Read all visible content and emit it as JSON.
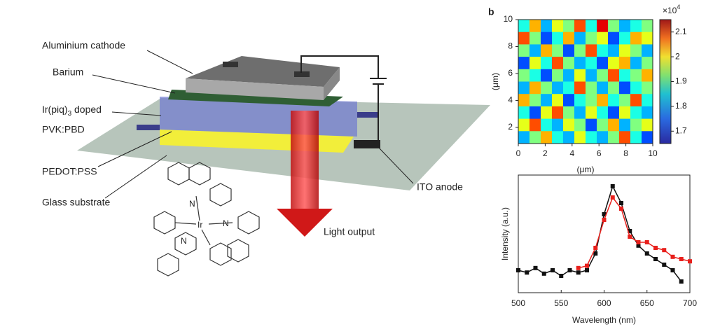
{
  "diagram": {
    "labels": {
      "cathode": "Aluminium cathode",
      "barium": "Barium",
      "doped": {
        "text": "Ir(piq)",
        "sub": "3",
        "rest": " doped"
      },
      "host": "PVK:PBD",
      "pedot": "PEDOT:PSS",
      "glass": "Glass substrate",
      "ito": "ITO anode",
      "light": "Light output"
    },
    "molecule_atoms": [
      "N",
      "N",
      "N",
      "Ir"
    ]
  },
  "panel_label": "b",
  "chart_data": [
    {
      "type": "heatmap",
      "xlabel": "(μm)",
      "ylabel": "(μm)",
      "xlim": [
        0,
        10
      ],
      "ylim": [
        0.8,
        10
      ],
      "xticks": [
        0,
        2,
        4,
        6,
        8,
        10
      ],
      "yticks": [
        2,
        4,
        6,
        8,
        10
      ],
      "colorbar": {
        "clim": [
          1.65,
          2.15
        ],
        "ticks": [
          1.7,
          1.8,
          1.9,
          2,
          2.1
        ],
        "multiplier": {
          "base": "×10",
          "sup": "4"
        }
      },
      "grid_values": [
        [
          1.85,
          2.0,
          1.8,
          1.95,
          1.9,
          2.05,
          1.85,
          2.1,
          1.9,
          1.8,
          1.85,
          1.9
        ],
        [
          2.05,
          1.9,
          1.75,
          1.85,
          2.0,
          1.8,
          1.9,
          1.95,
          1.75,
          1.85,
          2.0,
          1.95
        ],
        [
          1.9,
          1.8,
          2.0,
          1.9,
          1.75,
          1.9,
          2.05,
          1.85,
          1.8,
          1.95,
          1.9,
          1.8
        ],
        [
          1.75,
          1.95,
          1.85,
          2.05,
          1.9,
          1.8,
          1.85,
          1.75,
          1.95,
          2.0,
          1.8,
          1.9
        ],
        [
          1.9,
          1.85,
          1.75,
          1.9,
          1.8,
          1.95,
          1.8,
          1.9,
          2.05,
          1.85,
          1.9,
          2.0
        ],
        [
          1.8,
          2.0,
          1.9,
          1.8,
          1.85,
          2.05,
          1.9,
          1.8,
          1.9,
          1.75,
          1.85,
          1.9
        ],
        [
          2.0,
          1.9,
          1.8,
          1.95,
          1.75,
          1.85,
          1.9,
          2.0,
          1.85,
          1.9,
          2.05,
          1.85
        ],
        [
          1.85,
          1.75,
          1.95,
          2.05,
          1.9,
          1.8,
          1.95,
          1.85,
          1.75,
          1.95,
          1.85,
          1.8
        ],
        [
          1.95,
          2.05,
          1.85,
          1.8,
          1.95,
          1.9,
          1.75,
          1.9,
          2.0,
          1.8,
          1.9,
          1.95
        ],
        [
          1.8,
          1.9,
          2.0,
          1.85,
          1.8,
          1.95,
          1.85,
          1.8,
          1.9,
          2.05,
          1.85,
          1.75
        ]
      ]
    },
    {
      "type": "line",
      "xlabel": "Wavelength (nm)",
      "ylabel": "Intensity (a.u.)",
      "xlim": [
        500,
        700
      ],
      "ylim": [
        0,
        1.05
      ],
      "xticks": [
        500,
        550,
        600,
        650,
        700
      ],
      "x": [
        500,
        510,
        520,
        530,
        540,
        550,
        560,
        570,
        580,
        590,
        600,
        610,
        620,
        630,
        640,
        650,
        660,
        670,
        680,
        690,
        700
      ],
      "series": [
        {
          "color": "#111111",
          "values": [
            0.2,
            0.18,
            0.22,
            0.17,
            0.2,
            0.15,
            0.2,
            0.18,
            0.2,
            0.35,
            0.7,
            0.95,
            0.8,
            0.55,
            0.42,
            0.35,
            0.3,
            0.25,
            0.2,
            0.1,
            null
          ]
        },
        {
          "color": "#e8201c",
          "values": [
            null,
            null,
            null,
            null,
            null,
            null,
            null,
            0.22,
            0.24,
            0.4,
            0.65,
            0.85,
            0.75,
            0.5,
            0.45,
            0.45,
            0.4,
            0.38,
            0.32,
            0.3,
            0.28
          ]
        }
      ]
    }
  ]
}
